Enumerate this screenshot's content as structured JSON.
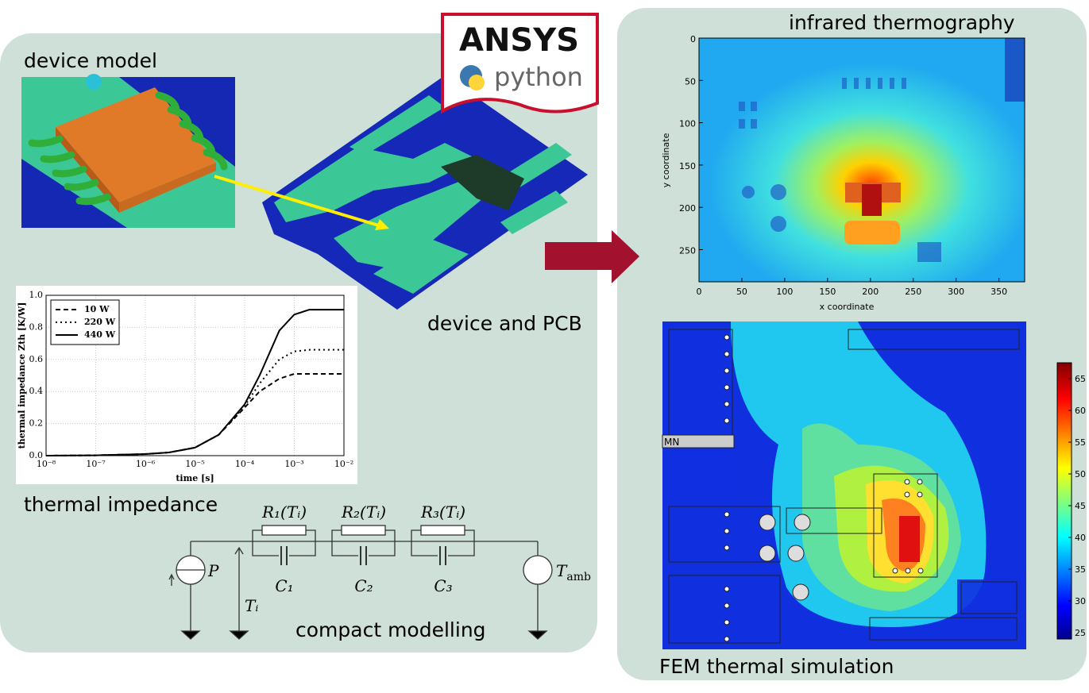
{
  "labels": {
    "device_model": "device model",
    "device_pcb": "device and PCB",
    "thermal_impedance": "thermal impedance",
    "compact_modelling": "compact modelling",
    "infrared": "infrared thermography",
    "fem": "FEM thermal simulation",
    "fem_mark": "MN"
  },
  "logos": {
    "ansys": "ANSYS",
    "python": "python"
  },
  "circuit": {
    "resistors": [
      "R₁(Tᵢ)",
      "R₂(Tᵢ)",
      "R₃(Tᵢ)"
    ],
    "capacitors": [
      "C₁",
      "C₂",
      "C₃"
    ],
    "source": "P",
    "temperature": "Tᵢ",
    "ambient": {
      "symbol": "T",
      "subscript": "amb"
    }
  },
  "chart_data": [
    {
      "type": "line",
      "xlabel": "time [s]",
      "ylabel": "thermal impedance Zth [K/W]",
      "xscale": "log",
      "x": [
        1e-08,
        1e-07,
        1e-06,
        3e-06,
        1e-05,
        3e-05,
        0.0001,
        0.0002,
        0.0005,
        0.001,
        0.002,
        0.01
      ],
      "series": [
        {
          "name": "10 W",
          "color": "#000000",
          "dash": "6 4",
          "values": [
            0,
            0.002,
            0.01,
            0.02,
            0.05,
            0.13,
            0.3,
            0.4,
            0.48,
            0.51,
            0.51,
            0.51
          ]
        },
        {
          "name": "220 W",
          "color": "#000000",
          "dash": "2 4",
          "values": [
            0,
            0.002,
            0.01,
            0.02,
            0.05,
            0.13,
            0.31,
            0.45,
            0.6,
            0.65,
            0.66,
            0.66
          ]
        },
        {
          "name": "440 W",
          "color": "#000000",
          "dash": "none",
          "values": [
            0,
            0.002,
            0.01,
            0.02,
            0.05,
            0.13,
            0.32,
            0.5,
            0.78,
            0.88,
            0.91,
            0.91
          ]
        }
      ],
      "xlim": [
        1e-08,
        0.01
      ],
      "xticks": [
        {
          "value": 1e-08,
          "label": "10⁻⁸"
        },
        {
          "value": 1e-07,
          "label": "10⁻⁷"
        },
        {
          "value": 1e-06,
          "label": "10⁻⁶"
        },
        {
          "value": 1e-05,
          "label": "10⁻⁵"
        },
        {
          "value": 0.0001,
          "label": "10⁻⁴"
        },
        {
          "value": 0.001,
          "label": "10⁻³"
        },
        {
          "value": 0.01,
          "label": "10⁻²"
        }
      ],
      "ylim": [
        0,
        1
      ],
      "yticks": [
        {
          "value": 0,
          "label": "0.0"
        },
        0.2,
        0.4,
        0.6,
        0.8,
        {
          "value": 1,
          "label": "1.0"
        }
      ],
      "grid": true,
      "legend": "upper left"
    },
    {
      "type": "heatmap",
      "xlabel": "x coordinate",
      "ylabel": "y coordinate",
      "xlim": [
        0,
        380
      ],
      "xticks": [
        0,
        50,
        100,
        150,
        200,
        250,
        300,
        350
      ],
      "ylim": [
        0,
        288
      ],
      "yticks": [
        0,
        50,
        100,
        150,
        200,
        250
      ],
      "invert_y": true
    },
    {
      "type": "colorbar",
      "clim": [
        24,
        67.5
      ],
      "ticks": [
        25,
        30,
        35,
        40,
        45,
        50,
        55,
        60,
        65
      ],
      "colormap": "jet"
    }
  ]
}
